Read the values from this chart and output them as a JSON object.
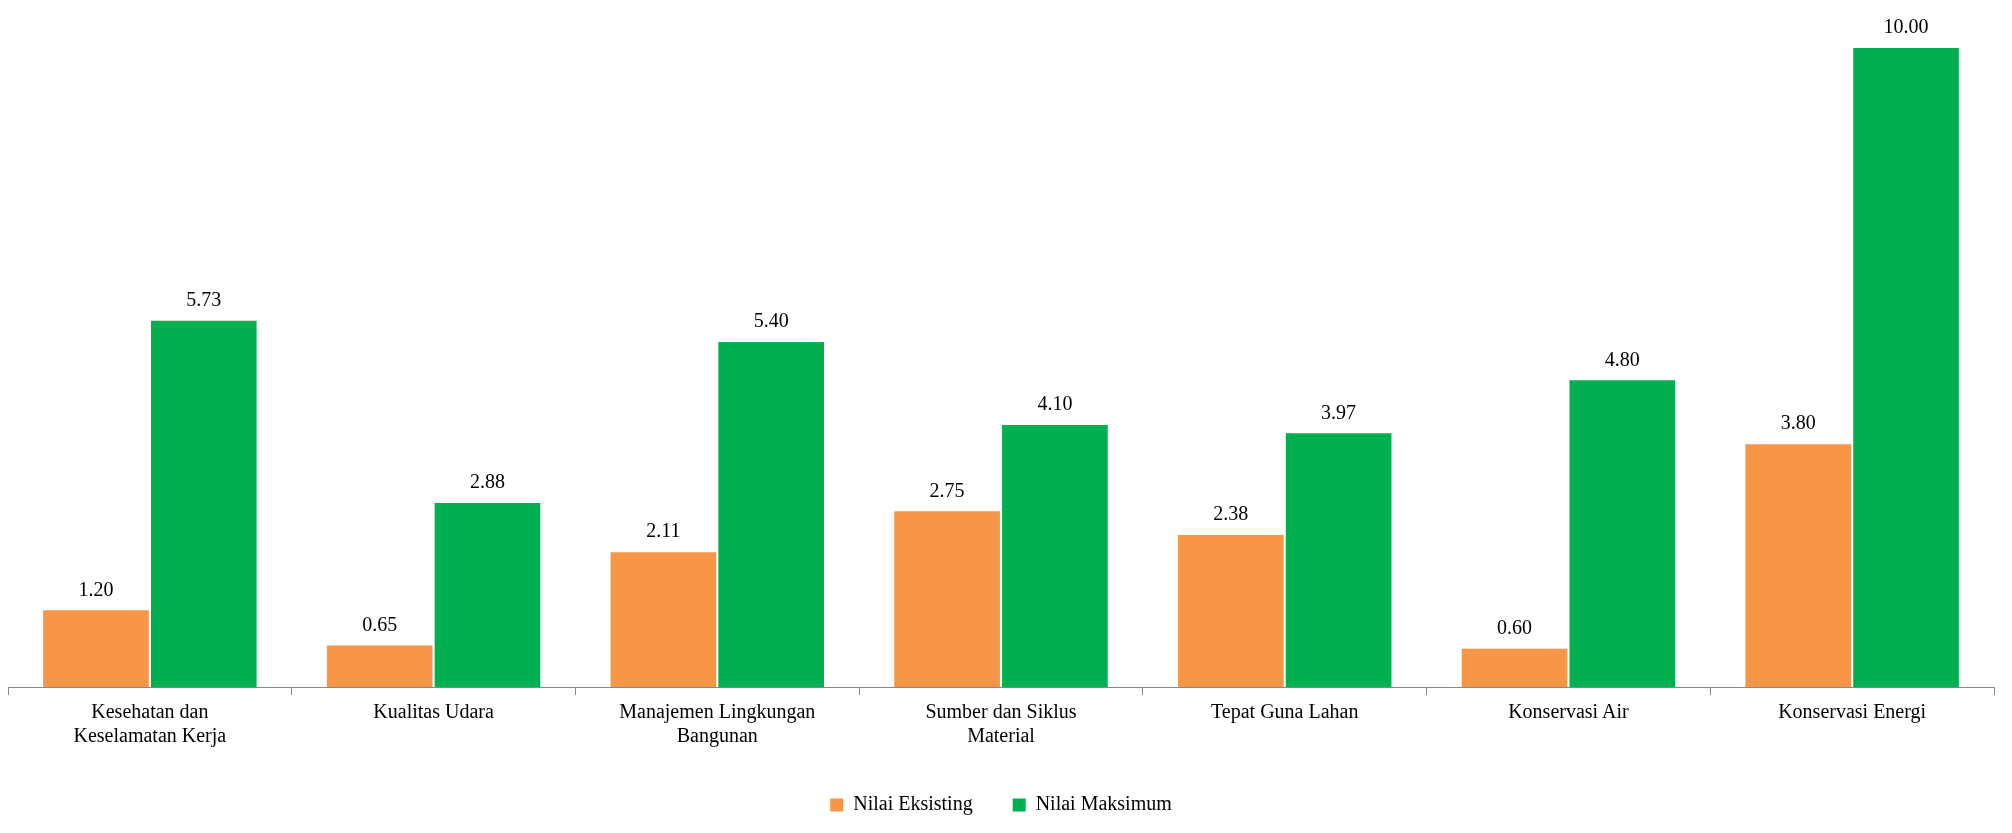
{
  "chart_data": {
    "type": "bar",
    "categories": [
      "Kesehatan dan Keselamatan Kerja",
      "Kualitas Udara",
      "Manajemen Lingkungan Bangunan",
      "Sumber dan Siklus Material",
      "Tepat Guna Lahan",
      "Konservasi Air",
      "Konservasi Energi"
    ],
    "series": [
      {
        "name": "Nilai Eksisting",
        "color": "#f79646",
        "values": [
          1.2,
          0.65,
          2.11,
          2.75,
          2.38,
          0.6,
          3.8
        ],
        "value_labels": [
          "1.20",
          "0.65",
          "2.11",
          "2.75",
          "2.38",
          "0.60",
          "3.80"
        ]
      },
      {
        "name": "Nilai Maksimum",
        "color": "#00b050",
        "values": [
          5.73,
          2.88,
          5.4,
          4.1,
          3.97,
          4.8,
          10.0
        ],
        "value_labels": [
          "5.73",
          "2.88",
          "5.40",
          "4.10",
          "3.97",
          "4.80",
          "10.00"
        ]
      }
    ],
    "legend": "bottom",
    "grid": false
  }
}
